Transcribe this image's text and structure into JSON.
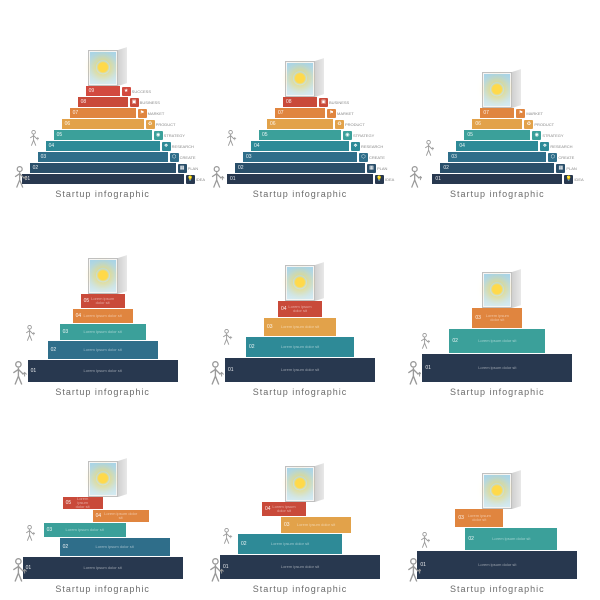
{
  "caption": "Startup infographic",
  "door": {
    "sun_color": "#ffd94a",
    "sky_top": "#a8d4e8",
    "sky_bottom": "#d4eaf2",
    "frame": "#c0c0c0"
  },
  "person_color": "#999999",
  "palette_thin": {
    "9": "#d24a3f",
    "8": "#c94a3a",
    "7": "#e0853f",
    "6": "#e2a24a",
    "5": "#3ba09a",
    "4": "#2e8a97",
    "3": "#2f6e8a",
    "2": "#2a4f6a",
    "1": "#28384f"
  },
  "step_labels": {
    "9": "SUCCESS",
    "8": "BUSINESS",
    "7": "MARKET",
    "6": "PRODUCT",
    "5": "STRATEGY",
    "4": "RESEARCH",
    "3": "CREATE",
    "2": "PLAN",
    "1": "IDEA"
  },
  "icons": {
    "9": "★",
    "8": "▣",
    "7": "⚑",
    "6": "♻",
    "5": "◉",
    "4": "❖",
    "3": "⬡",
    "2": "▦",
    "1": "💡"
  },
  "top_row": [
    {
      "steps": 9,
      "start": 1
    },
    {
      "steps": 8,
      "start": 1
    },
    {
      "steps": 7,
      "start": 1
    }
  ],
  "variants": {
    "r2c1": {
      "blocks": [
        {
          "w": 44,
          "h": 14,
          "c": "#c94a3a",
          "x": 0,
          "n": "05"
        },
        {
          "w": 60,
          "h": 14,
          "c": "#e0853f",
          "x": 0,
          "n": "04"
        },
        {
          "w": 86,
          "h": 16,
          "c": "#3ba09a",
          "x": 0,
          "n": "03"
        },
        {
          "w": 110,
          "h": 18,
          "c": "#2f6e8a",
          "x": 0,
          "n": "02"
        },
        {
          "w": 150,
          "h": 22,
          "c": "#28384f",
          "x": 0,
          "n": "01"
        }
      ]
    },
    "r2c2": {
      "blocks": [
        {
          "w": 44,
          "h": 16,
          "c": "#c94a3a",
          "x": 0,
          "n": "04"
        },
        {
          "w": 72,
          "h": 18,
          "c": "#e2a24a",
          "x": 0,
          "n": "03"
        },
        {
          "w": 108,
          "h": 20,
          "c": "#2e8a97",
          "x": 0,
          "n": "02"
        },
        {
          "w": 150,
          "h": 24,
          "c": "#28384f",
          "x": 0,
          "n": "01"
        }
      ]
    },
    "r2c3": {
      "blocks": [
        {
          "w": 50,
          "h": 20,
          "c": "#e0853f",
          "x": 0,
          "n": "03"
        },
        {
          "w": 96,
          "h": 24,
          "c": "#3ba09a",
          "x": 0,
          "n": "02"
        },
        {
          "w": 150,
          "h": 28,
          "c": "#28384f",
          "x": 0,
          "n": "01"
        }
      ]
    },
    "r3c1": {
      "blocks": [
        {
          "w": 40,
          "h": 12,
          "c": "#c94a3a",
          "x": -20,
          "n": "05"
        },
        {
          "w": 56,
          "h": 12,
          "c": "#e0853f",
          "x": 18,
          "n": "04"
        },
        {
          "w": 82,
          "h": 14,
          "c": "#3ba09a",
          "x": -18,
          "n": "03"
        },
        {
          "w": 110,
          "h": 18,
          "c": "#2f6e8a",
          "x": 12,
          "n": "02"
        },
        {
          "w": 160,
          "h": 22,
          "c": "#28384f",
          "x": 0,
          "n": "01"
        }
      ]
    },
    "r3c2": {
      "blocks": [
        {
          "w": 44,
          "h": 14,
          "c": "#c94a3a",
          "x": -16,
          "n": "04"
        },
        {
          "w": 70,
          "h": 16,
          "c": "#e2a24a",
          "x": 16,
          "n": "03"
        },
        {
          "w": 104,
          "h": 20,
          "c": "#2e8a97",
          "x": -10,
          "n": "02"
        },
        {
          "w": 160,
          "h": 24,
          "c": "#28384f",
          "x": 0,
          "n": "01"
        }
      ]
    },
    "r3c3": {
      "blocks": [
        {
          "w": 48,
          "h": 18,
          "c": "#e0853f",
          "x": -18,
          "n": "03"
        },
        {
          "w": 92,
          "h": 22,
          "c": "#3ba09a",
          "x": 14,
          "n": "02"
        },
        {
          "w": 160,
          "h": 28,
          "c": "#28384f",
          "x": 0,
          "n": "01"
        }
      ]
    }
  },
  "thin_step": {
    "height": 10,
    "min_w": 34,
    "grow": 16
  }
}
